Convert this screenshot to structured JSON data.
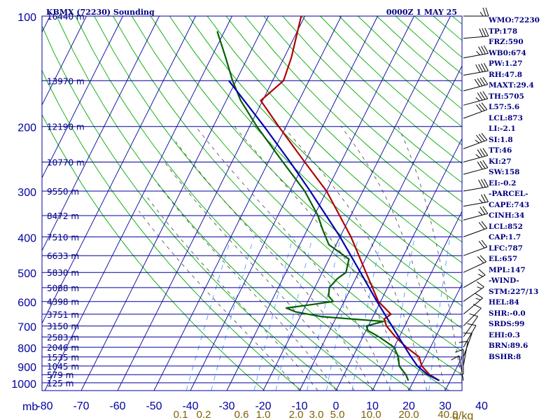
{
  "chart_data": {
    "type": "skew-t",
    "title": "KBMX (72230) Sounding",
    "valid_time": "0000Z  1 MAY 25",
    "pressure_unit": "mb",
    "mixing_ratio_unit": "g/kg",
    "pressure_levels": [
      100,
      200,
      300,
      400,
      500,
      600,
      700,
      800,
      900,
      1000
    ],
    "height_labels": [
      {
        "p": 100,
        "label": "16440 m"
      },
      {
        "p": 150,
        "label": "13970 m"
      },
      {
        "p": 200,
        "label": "12190 m"
      },
      {
        "p": 250,
        "label": "10770 m"
      },
      {
        "p": 300,
        "label": "9550 m"
      },
      {
        "p": 350,
        "label": "8472 m"
      },
      {
        "p": 400,
        "label": "7510 m"
      },
      {
        "p": 450,
        "label": "6633 m"
      },
      {
        "p": 500,
        "label": "5830 m"
      },
      {
        "p": 550,
        "label": "5088 m"
      },
      {
        "p": 600,
        "label": "4398 m"
      },
      {
        "p": 650,
        "label": "3751 m"
      },
      {
        "p": 700,
        "label": "3150 m"
      },
      {
        "p": 750,
        "label": "2583 m"
      },
      {
        "p": 800,
        "label": "2046 m"
      },
      {
        "p": 850,
        "label": "1535 m"
      },
      {
        "p": 900,
        "label": "1045 m"
      },
      {
        "p": 950,
        "label": "579 m"
      },
      {
        "p": 1000,
        "label": "125 m"
      }
    ],
    "temperature_ticks": [
      -80,
      -70,
      -60,
      -50,
      -40,
      -30,
      -20,
      -10,
      0,
      10,
      20,
      30,
      40
    ],
    "mixing_ratio_ticks": [
      "0.1",
      "0.2",
      "0.6",
      "1.0",
      "2.0",
      "3.0",
      "5.0",
      "10.0",
      "20.0",
      "40.0"
    ],
    "temperature_profile": [
      {
        "p": 986,
        "t": 27.0
      },
      {
        "p": 950,
        "t": 23.5
      },
      {
        "p": 900,
        "t": 20.2
      },
      {
        "p": 850,
        "t": 18.2
      },
      {
        "p": 800,
        "t": 13.4
      },
      {
        "p": 750,
        "t": 9.0
      },
      {
        "p": 700,
        "t": 5.0
      },
      {
        "p": 670,
        "t": 3.4
      },
      {
        "p": 650,
        "t": 4.6
      },
      {
        "p": 600,
        "t": -0.6
      },
      {
        "p": 500,
        "t": -8.0
      },
      {
        "p": 400,
        "t": -17.0
      },
      {
        "p": 300,
        "t": -30.0
      },
      {
        "p": 250,
        "t": -40.0
      },
      {
        "p": 200,
        "t": -52.0
      },
      {
        "p": 170,
        "t": -60.5
      },
      {
        "p": 150,
        "t": -57.0
      },
      {
        "p": 130,
        "t": -58.0
      },
      {
        "p": 100,
        "t": -61.0
      }
    ],
    "dewpoint_profile": [
      {
        "p": 986,
        "t": 18.5
      },
      {
        "p": 950,
        "t": 17.0
      },
      {
        "p": 900,
        "t": 14.0
      },
      {
        "p": 850,
        "t": 12.5
      },
      {
        "p": 800,
        "t": 10.0
      },
      {
        "p": 750,
        "t": 4.5
      },
      {
        "p": 720,
        "t": 0.5
      },
      {
        "p": 700,
        "t": -0.5
      },
      {
        "p": 680,
        "t": 3.5
      },
      {
        "p": 660,
        "t": -14.0
      },
      {
        "p": 640,
        "t": -22.0
      },
      {
        "p": 625,
        "t": -25.0
      },
      {
        "p": 615,
        "t": -20.0
      },
      {
        "p": 600,
        "t": -13.0
      },
      {
        "p": 580,
        "t": -15.0
      },
      {
        "p": 550,
        "t": -16.0
      },
      {
        "p": 520,
        "t": -15.0
      },
      {
        "p": 500,
        "t": -13.5
      },
      {
        "p": 460,
        "t": -14.5
      },
      {
        "p": 420,
        "t": -22.0
      },
      {
        "p": 380,
        "t": -26.0
      },
      {
        "p": 350,
        "t": -29.0
      },
      {
        "p": 300,
        "t": -36.0
      },
      {
        "p": 250,
        "t": -46.0
      },
      {
        "p": 200,
        "t": -58.0
      },
      {
        "p": 170,
        "t": -66.0
      },
      {
        "p": 150,
        "t": -71.0
      },
      {
        "p": 130,
        "t": -76.0
      },
      {
        "p": 110,
        "t": -82.0
      }
    ],
    "parcel_profile": [
      {
        "p": 986,
        "t": 27.0
      },
      {
        "p": 950,
        "t": 23.0
      },
      {
        "p": 900,
        "t": 19.0
      },
      {
        "p": 850,
        "t": 16.0
      },
      {
        "p": 800,
        "t": 13.0
      },
      {
        "p": 700,
        "t": 6.5
      },
      {
        "p": 600,
        "t": -1.0
      },
      {
        "p": 500,
        "t": -9.5
      },
      {
        "p": 400,
        "t": -20.0
      },
      {
        "p": 300,
        "t": -34.5
      },
      {
        "p": 250,
        "t": -44.0
      },
      {
        "p": 200,
        "t": -56.0
      },
      {
        "p": 150,
        "t": -72.0
      }
    ],
    "line_colors": {
      "temperature": "#b00000",
      "dewpoint": "#006000",
      "parcel": "#0000b0",
      "isobars_isotherms": "#0000a0",
      "dry_adiabats": "#00aa00",
      "moist_adiabats": "#444444",
      "mixing_ratio": "#3399ff"
    },
    "wind_barbs": [
      {
        "p": 100,
        "dir": 270,
        "spd": 25
      },
      {
        "p": 115,
        "dir": 265,
        "spd": 30
      },
      {
        "p": 130,
        "dir": 260,
        "spd": 35
      },
      {
        "p": 145,
        "dir": 260,
        "spd": 40
      },
      {
        "p": 160,
        "dir": 255,
        "spd": 40
      },
      {
        "p": 175,
        "dir": 255,
        "spd": 35
      },
      {
        "p": 190,
        "dir": 250,
        "spd": 30
      },
      {
        "p": 230,
        "dir": 250,
        "spd": 35
      },
      {
        "p": 250,
        "dir": 255,
        "spd": 35
      },
      {
        "p": 270,
        "dir": 255,
        "spd": 30
      },
      {
        "p": 300,
        "dir": 260,
        "spd": 30
      },
      {
        "p": 330,
        "dir": 260,
        "spd": 25
      },
      {
        "p": 360,
        "dir": 255,
        "spd": 25
      },
      {
        "p": 400,
        "dir": 250,
        "spd": 20
      },
      {
        "p": 450,
        "dir": 250,
        "spd": 20
      },
      {
        "p": 500,
        "dir": 245,
        "spd": 20
      },
      {
        "p": 550,
        "dir": 240,
        "spd": 15
      },
      {
        "p": 600,
        "dir": 235,
        "spd": 15
      },
      {
        "p": 650,
        "dir": 230,
        "spd": 15
      },
      {
        "p": 700,
        "dir": 225,
        "spd": 10
      },
      {
        "p": 750,
        "dir": 215,
        "spd": 10
      },
      {
        "p": 800,
        "dir": 210,
        "spd": 10
      },
      {
        "p": 850,
        "dir": 200,
        "spd": 10
      },
      {
        "p": 900,
        "dir": 190,
        "spd": 10
      },
      {
        "p": 950,
        "dir": 180,
        "spd": 10
      },
      {
        "p": 986,
        "dir": 170,
        "spd": 10
      }
    ]
  },
  "stats": [
    "WMO:72230",
    "TP:178",
    "FRZ:590",
    "WB0:674",
    "PW:1.27",
    "RH:47.8",
    "MAXT:29.4",
    "TH:5705",
    "L57:5.6",
    "LCL:873",
    "LI:-2.1",
    "SI:1.8",
    "TT:46",
    "KI:27",
    "SW:158",
    "EI:-0.2",
    "-PARCEL-",
    "CAPE:743",
    "CINH:34",
    "LCL:852",
    "CAP:1.7",
    "LFC:787",
    "EL:657",
    "MPL:147",
    "-WIND-",
    "STM:227/13",
    "HEL:84",
    "SHR:-0.0",
    "SRDS:99",
    "EHI:0.3",
    "BRN:89.6",
    "BSHR:8"
  ]
}
